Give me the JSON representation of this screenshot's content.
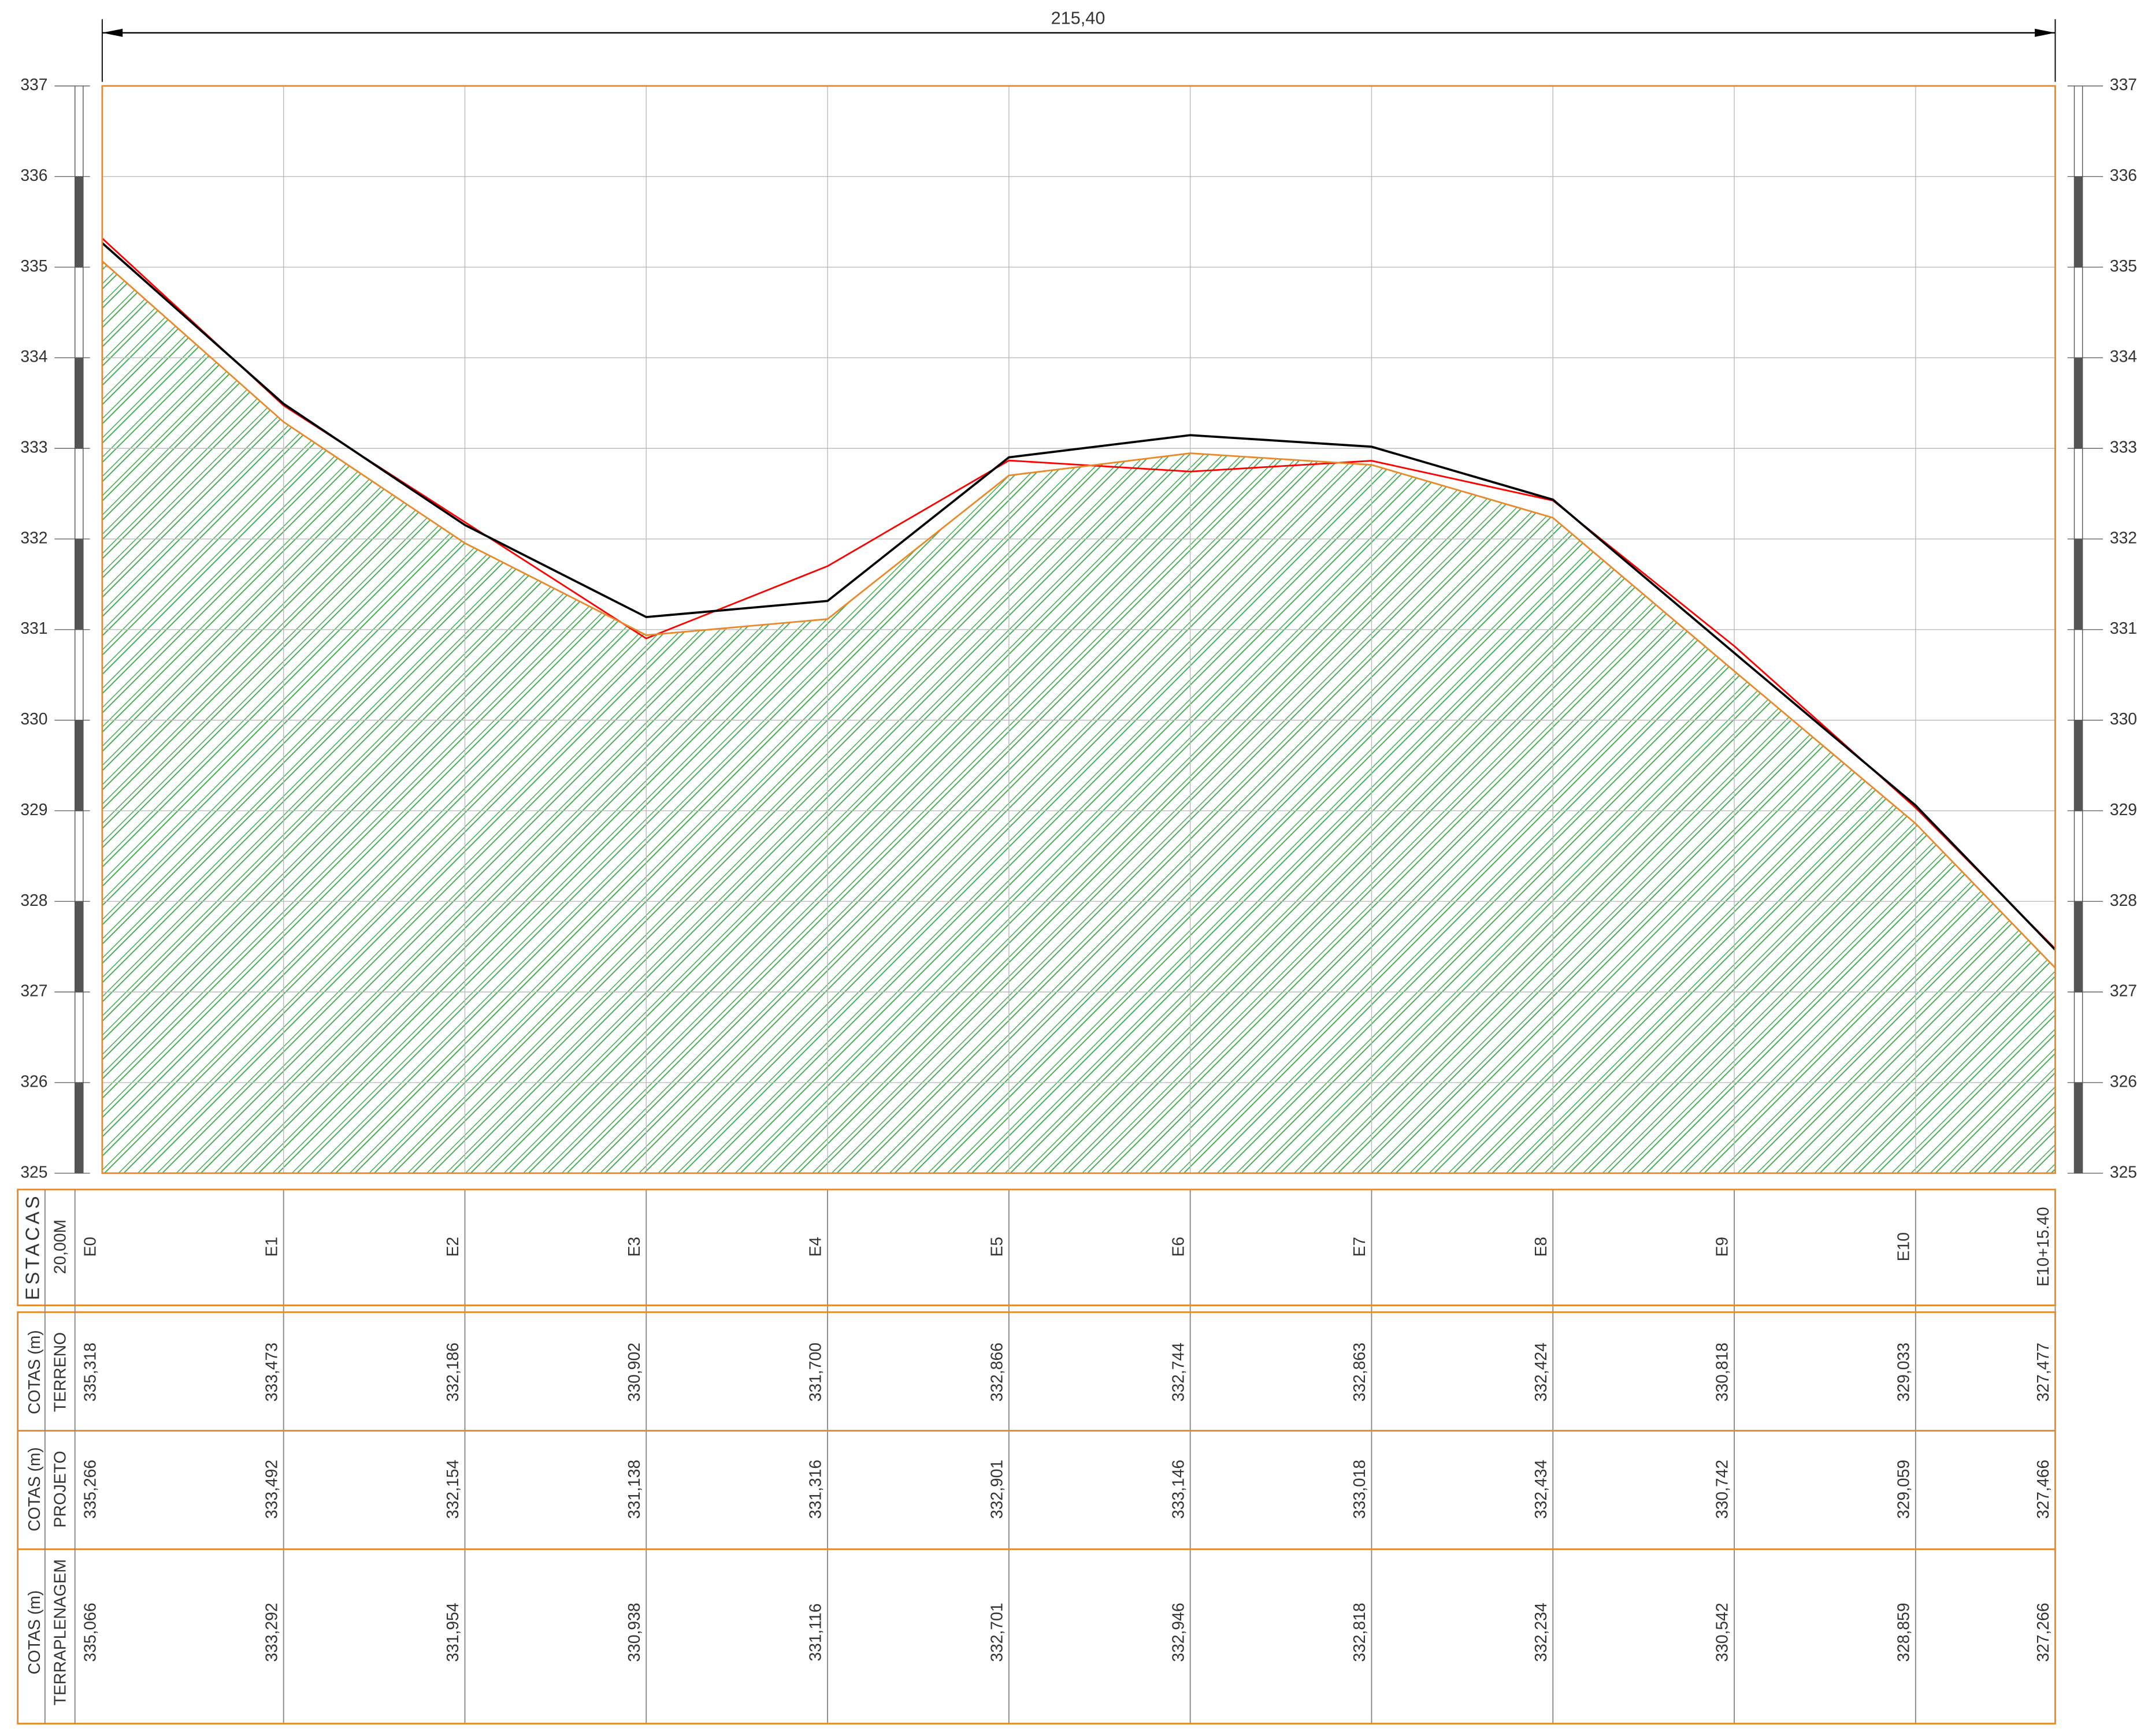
{
  "chart_data": {
    "type": "line",
    "dimension_label": "215,40",
    "station_header": "ESTACAS",
    "station_interval": "20,00M",
    "x": [
      0,
      20,
      40,
      60,
      80,
      100,
      120,
      140,
      160,
      180,
      200,
      215.4
    ],
    "categories": [
      "E0",
      "E1",
      "E2",
      "E3",
      "E4",
      "E5",
      "E6",
      "E7",
      "E8",
      "E9",
      "E10",
      "E10+15.40"
    ],
    "xlim": [
      0,
      215.4
    ],
    "ylim": [
      325,
      337
    ],
    "yticks": [
      325,
      326,
      327,
      328,
      329,
      330,
      331,
      332,
      333,
      334,
      335,
      336,
      337
    ],
    "grid": true,
    "series": [
      {
        "name": "TERRENO",
        "header": "COTAS (m)",
        "color": "#ff0000",
        "values": [
          335.318,
          333.473,
          332.186,
          330.902,
          331.7,
          332.866,
          332.744,
          332.863,
          332.424,
          330.818,
          329.033,
          327.477
        ],
        "value_labels": [
          "335,318",
          "333,473",
          "332,186",
          "330,902",
          "331,700",
          "332,866",
          "332,744",
          "332,863",
          "332,424",
          "330,818",
          "329,033",
          "327,477"
        ]
      },
      {
        "name": "PROJETO",
        "header": "COTAS (m)",
        "color": "#000000",
        "values": [
          335.266,
          333.492,
          332.154,
          331.138,
          331.316,
          332.901,
          333.146,
          333.018,
          332.434,
          330.742,
          329.059,
          327.466
        ],
        "value_labels": [
          "335,266",
          "333,492",
          "332,154",
          "331,138",
          "331,316",
          "332,901",
          "333,146",
          "333,018",
          "332,434",
          "330,742",
          "329,059",
          "327,466"
        ]
      },
      {
        "name": "TERRAPLENAGEM",
        "header": "COTAS (m)",
        "color": "#e8892a",
        "fill": "#3aa84a",
        "values": [
          335.066,
          333.292,
          331.954,
          330.938,
          331.116,
          332.701,
          332.946,
          332.818,
          332.234,
          330.542,
          328.859,
          327.266
        ],
        "value_labels": [
          "335,066",
          "333,292",
          "331,954",
          "330,938",
          "331,116",
          "332,701",
          "332,946",
          "332,818",
          "332,234",
          "330,542",
          "328,859",
          "327,266"
        ]
      }
    ]
  }
}
